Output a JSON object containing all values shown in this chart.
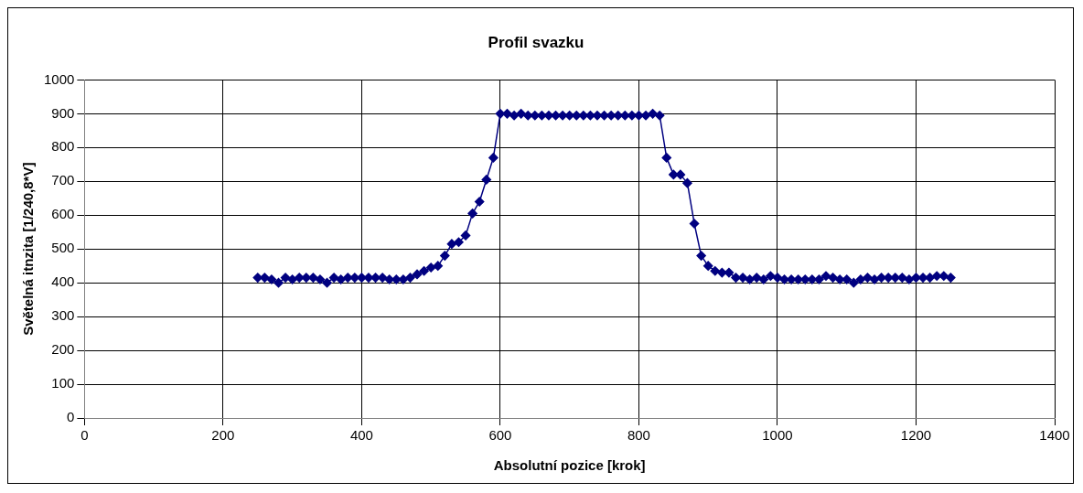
{
  "chart_data": {
    "type": "line",
    "title": "Profil svazku",
    "xlabel": "Absolutní pozice [krok]",
    "ylabel": "Světelná itnzita [1/240,8*V]",
    "x": [
      250,
      260,
      270,
      280,
      290,
      300,
      310,
      320,
      330,
      340,
      350,
      360,
      370,
      380,
      390,
      400,
      410,
      420,
      430,
      440,
      450,
      460,
      470,
      480,
      490,
      500,
      510,
      520,
      530,
      540,
      550,
      560,
      570,
      580,
      590,
      600,
      610,
      620,
      630,
      640,
      650,
      660,
      670,
      680,
      690,
      700,
      710,
      720,
      730,
      740,
      750,
      760,
      770,
      780,
      790,
      800,
      810,
      820,
      830,
      840,
      850,
      860,
      870,
      880,
      890,
      900,
      910,
      920,
      930,
      940,
      950,
      960,
      970,
      980,
      990,
      1000,
      1010,
      1020,
      1030,
      1040,
      1050,
      1060,
      1070,
      1080,
      1090,
      1100,
      1110,
      1120,
      1130,
      1140,
      1150,
      1160,
      1170,
      1180,
      1190,
      1200,
      1210,
      1220,
      1230,
      1240,
      1250
    ],
    "series": [
      {
        "color": "#000080",
        "values": [
          415,
          415,
          410,
          400,
          415,
          410,
          415,
          415,
          415,
          410,
          400,
          415,
          410,
          415,
          415,
          415,
          415,
          415,
          415,
          410,
          410,
          410,
          415,
          425,
          435,
          445,
          450,
          480,
          515,
          520,
          540,
          605,
          640,
          705,
          770,
          900,
          900,
          895,
          900,
          895,
          895,
          895,
          895,
          895,
          895,
          895,
          895,
          895,
          895,
          895,
          895,
          895,
          895,
          895,
          895,
          895,
          895,
          900,
          895,
          770,
          720,
          720,
          695,
          575,
          480,
          450,
          435,
          430,
          430,
          415,
          415,
          410,
          415,
          410,
          420,
          415,
          410,
          410,
          410,
          410,
          410,
          410,
          420,
          415,
          410,
          410,
          400,
          410,
          415,
          410,
          415,
          415,
          415,
          415,
          410,
          415,
          415,
          415,
          420,
          420,
          415
        ]
      }
    ],
    "xlim": [
      0,
      1400
    ],
    "xticks": [
      0,
      200,
      400,
      600,
      800,
      1000,
      1200,
      1400
    ],
    "ylim": [
      0,
      1000
    ],
    "yticks": [
      0,
      100,
      200,
      300,
      400,
      500,
      600,
      700,
      800,
      900,
      1000
    ],
    "grid": true,
    "marker": "diamond",
    "line_style": "solid"
  }
}
